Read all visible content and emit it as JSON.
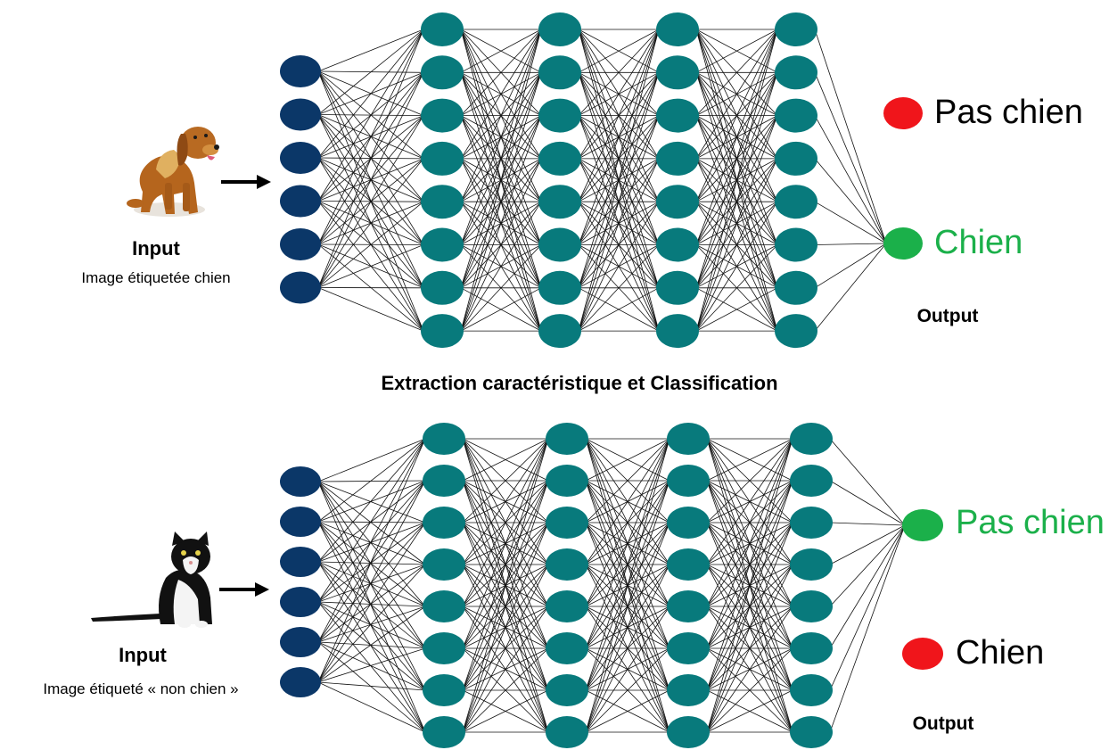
{
  "colors": {
    "input_node": "#0b3768",
    "hidden_node": "#087a7c",
    "edge": "#111111",
    "output_active": "#1bb04a",
    "output_inactive": "#f0151b",
    "arrow": "#000000"
  },
  "middle_caption": "Extraction caractéristique et Classification",
  "panels": [
    {
      "id": "dog",
      "animal_icon": "dog-photo",
      "input_title": "Input",
      "input_subtitle": "Image étiquetée chien",
      "input_node_count": 6,
      "hidden_layer_sizes": [
        8,
        8,
        8,
        8
      ],
      "outputs": [
        {
          "label": "Pas chien",
          "active": false
        },
        {
          "label": "Chien",
          "active": true
        }
      ],
      "output_title": "Output"
    },
    {
      "id": "cat",
      "animal_icon": "cat-photo",
      "input_title": "Input",
      "input_subtitle": "Image étiqueté « non chien »",
      "input_node_count": 6,
      "hidden_layer_sizes": [
        8,
        8,
        8,
        8
      ],
      "outputs": [
        {
          "label": "Pas chien",
          "active": true
        },
        {
          "label": "Chien",
          "active": false
        }
      ],
      "output_title": "Output"
    }
  ]
}
